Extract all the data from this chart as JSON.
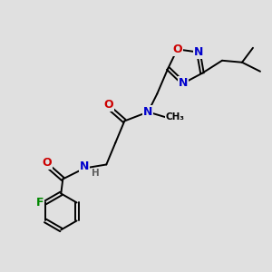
{
  "background_color": "#e0e0e0",
  "atom_colors": {
    "C": "#000000",
    "N": "#0000cc",
    "O": "#cc0000",
    "F": "#008800",
    "H": "#606060"
  },
  "bond_color": "#000000",
  "lw": 1.4,
  "fs": 9.0
}
